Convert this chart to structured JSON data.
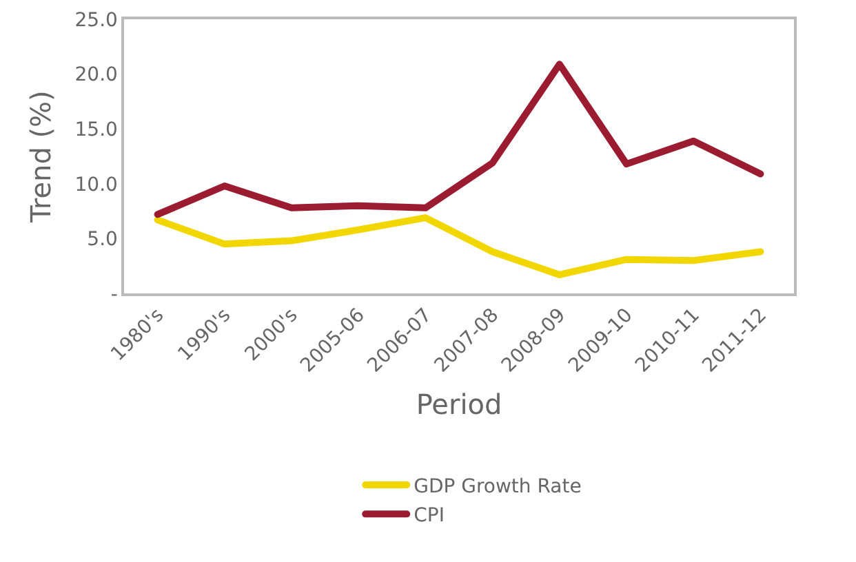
{
  "chart_data": {
    "type": "line",
    "xlabel": "Period",
    "ylabel": "Trend (%)",
    "categories": [
      "1980's",
      "1990's",
      "2000's",
      "2005-06",
      "2006-07",
      "2007-08",
      "2008-09",
      "2009-10",
      "2010-11",
      "2011-12"
    ],
    "series": [
      {
        "name": "GDP Growth Rate",
        "color": "#f2d600",
        "values": [
          6.7,
          4.5,
          4.8,
          5.8,
          6.9,
          3.8,
          1.7,
          3.1,
          3.0,
          3.8
        ]
      },
      {
        "name": "CPI",
        "color": "#9b1c31",
        "values": [
          7.2,
          9.8,
          7.8,
          8.0,
          7.8,
          11.9,
          20.9,
          11.8,
          13.9,
          10.9
        ]
      }
    ],
    "ylim": [
      0,
      25
    ],
    "yticks": [
      {
        "value": 0,
        "label": "-"
      },
      {
        "value": 5,
        "label": "5.0"
      },
      {
        "value": 10,
        "label": "10.0"
      },
      {
        "value": 15,
        "label": "15.0"
      },
      {
        "value": 20,
        "label": "20.0"
      },
      {
        "value": 25,
        "label": "25.0"
      }
    ],
    "grid": false,
    "legend": "bottom",
    "marker": "none",
    "line_style": "solid"
  }
}
